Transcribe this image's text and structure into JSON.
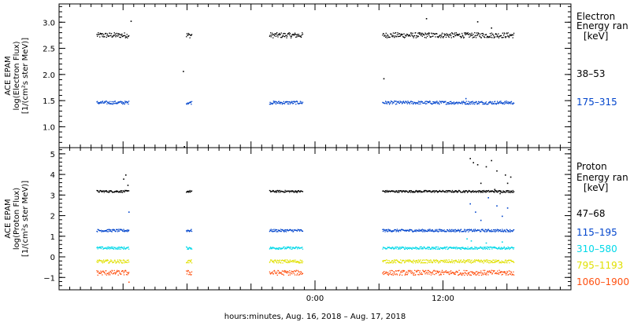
{
  "chart_data": [
    {
      "type": "scatter",
      "ylabel_lines": [
        "ACE EPAM",
        "log(Electron Flux)",
        "[1/(cm²s ster MeV)]"
      ],
      "ylim": [
        0.6,
        3.35
      ],
      "yticks": [
        1.0,
        1.5,
        2.0,
        2.5,
        3.0
      ],
      "ytick_labels": [
        "1.0",
        "1.5",
        "2.0",
        "2.5",
        "3.0"
      ],
      "xlim": [
        -24,
        24
      ],
      "legend_title": [
        "Electron",
        "Energy ran",
        "[keV]"
      ],
      "series": [
        {
          "name": "38–53",
          "color": "#000000",
          "level": 2.76,
          "noise": 0.05,
          "segments": [
            [
              -20.5,
              -17.5
            ],
            [
              -12.1,
              -11.6
            ],
            [
              -4.3,
              -1.2
            ],
            [
              6.3,
              18.6
            ]
          ],
          "outliers": [
            [
              -17.3,
              3.03
            ],
            [
              -12.4,
              2.07
            ],
            [
              10.4,
              3.08
            ],
            [
              15.2,
              3.02
            ],
            [
              16.5,
              2.9
            ],
            [
              -12.3,
              0.63
            ],
            [
              6.4,
              1.93
            ]
          ]
        },
        {
          "name": "175–315",
          "color": "#0044cc",
          "level": 1.47,
          "noise": 0.03,
          "segments": [
            [
              -20.5,
              -17.5
            ],
            [
              -12.1,
              -11.6
            ],
            [
              -4.3,
              -1.2
            ],
            [
              6.3,
              18.6
            ]
          ],
          "outliers": [
            [
              14.1,
              1.55
            ]
          ]
        }
      ]
    },
    {
      "type": "scatter",
      "ylabel_lines": [
        "ACE EPAM",
        "log(Proton Flux)",
        "[1/(cm²s ster MeV)]"
      ],
      "ylim": [
        -1.6,
        5.3
      ],
      "yticks": [
        -1,
        0,
        1,
        2,
        3,
        4,
        5
      ],
      "ytick_labels": [
        "−1",
        "0",
        "1",
        "2",
        "3",
        "4",
        "5"
      ],
      "xlim": [
        -24,
        24
      ],
      "xticks": [
        0,
        12
      ],
      "xtick_labels": [
        "0:00",
        "12:00"
      ],
      "xlabel": "hours:minutes, Aug. 16, 2018 – Aug. 17, 2018",
      "legend_title": [
        "Proton",
        "Energy ran",
        "[keV]"
      ],
      "series": [
        {
          "name": "47–68",
          "color": "#000000",
          "level": 3.2,
          "noise": 0.05,
          "segments": [
            [
              -20.5,
              -17.5
            ],
            [
              -12.1,
              -11.6
            ],
            [
              -4.3,
              -1.2
            ],
            [
              6.3,
              18.6
            ]
          ],
          "outliers": [
            [
              -18.0,
              3.8
            ],
            [
              -17.8,
              4.0
            ],
            [
              -17.6,
              3.5
            ],
            [
              14.5,
              4.8
            ],
            [
              14.8,
              4.6
            ],
            [
              15.2,
              4.5
            ],
            [
              16.0,
              4.4
            ],
            [
              16.5,
              4.7
            ],
            [
              17.0,
              4.2
            ],
            [
              17.8,
              4.0
            ],
            [
              18.3,
              3.9
            ],
            [
              15.5,
              3.6
            ],
            [
              16.8,
              3.3
            ],
            [
              17.3,
              3.1
            ],
            [
              18.0,
              3.6
            ]
          ]
        },
        {
          "name": "115–195",
          "color": "#0044cc",
          "level": 1.3,
          "noise": 0.06,
          "segments": [
            [
              -20.5,
              -17.5
            ],
            [
              -12.1,
              -11.6
            ],
            [
              -4.3,
              -1.2
            ],
            [
              6.3,
              18.6
            ]
          ],
          "outliers": [
            [
              -17.5,
              2.2
            ],
            [
              14.5,
              2.6
            ],
            [
              15.0,
              2.2
            ],
            [
              15.5,
              1.8
            ],
            [
              16.2,
              2.9
            ],
            [
              17.0,
              2.5
            ],
            [
              17.5,
              2.0
            ],
            [
              18.0,
              2.4
            ]
          ]
        },
        {
          "name": "310–580",
          "color": "#00d8e8",
          "level": 0.45,
          "noise": 0.06,
          "segments": [
            [
              -20.5,
              -17.5
            ],
            [
              -12.1,
              -11.6
            ],
            [
              -4.3,
              -1.2
            ],
            [
              6.3,
              18.6
            ]
          ],
          "outliers": [
            [
              14.2,
              0.9
            ],
            [
              14.6,
              0.8
            ],
            [
              16.0,
              0.7
            ],
            [
              17.5,
              0.75
            ]
          ]
        },
        {
          "name": "795–1193",
          "color": "#e0e000",
          "level": -0.2,
          "noise": 0.08,
          "segments": [
            [
              -20.5,
              -17.5
            ],
            [
              -12.1,
              -11.6
            ],
            [
              -4.3,
              -1.2
            ],
            [
              6.3,
              18.6
            ]
          ],
          "outliers": []
        },
        {
          "name": "1060–1900",
          "color": "#ff5010",
          "level": -0.75,
          "noise": 0.12,
          "segments": [
            [
              -20.5,
              -17.5
            ],
            [
              -12.1,
              -11.6
            ],
            [
              -4.3,
              -1.2
            ],
            [
              6.3,
              18.6
            ]
          ],
          "outliers": [
            [
              -17.5,
              -1.2
            ]
          ]
        }
      ]
    }
  ]
}
